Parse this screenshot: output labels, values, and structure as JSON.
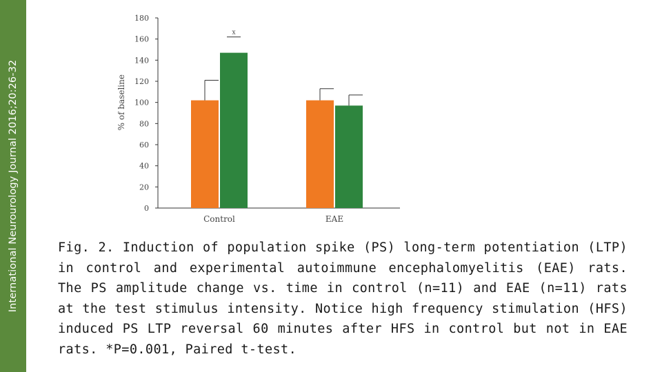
{
  "sidebar": {
    "journal_label": "International Neurourology Journal 2016;20:26-32"
  },
  "colors": {
    "sidebar": "#5b8a3c",
    "series_1": "#f07a22",
    "series_2": "#2e853e"
  },
  "chart_data": {
    "type": "bar",
    "title": "",
    "xlabel": "",
    "ylabel": "% of baseline",
    "ylim": [
      0,
      180
    ],
    "yticks": [
      "0",
      "20",
      "40",
      "60",
      "80",
      "100",
      "120",
      "140",
      "160",
      "180"
    ],
    "categories": [
      "Control",
      "EAE"
    ],
    "series": [
      {
        "name": "series-1",
        "values": [
          102,
          102
        ],
        "errors": [
          19,
          11
        ]
      },
      {
        "name": "series-2",
        "values": [
          147,
          97
        ],
        "errors": [
          0,
          10
        ]
      }
    ],
    "significance_label": "x"
  },
  "caption": "Fig. 2. Induction of population spike (PS) long-term potentiation (LTP) in control and experimental autoimmune encephalomyelitis (EAE) rats. The PS amplitude change vs. time in control (n=11) and EAE (n=11) rats at the test stimulus intensity. Notice high frequency stimulation (HFS) induced PS LTP reversal 60 minutes after HFS in control but not in EAE rats. *P=0.001, Paired t-test."
}
